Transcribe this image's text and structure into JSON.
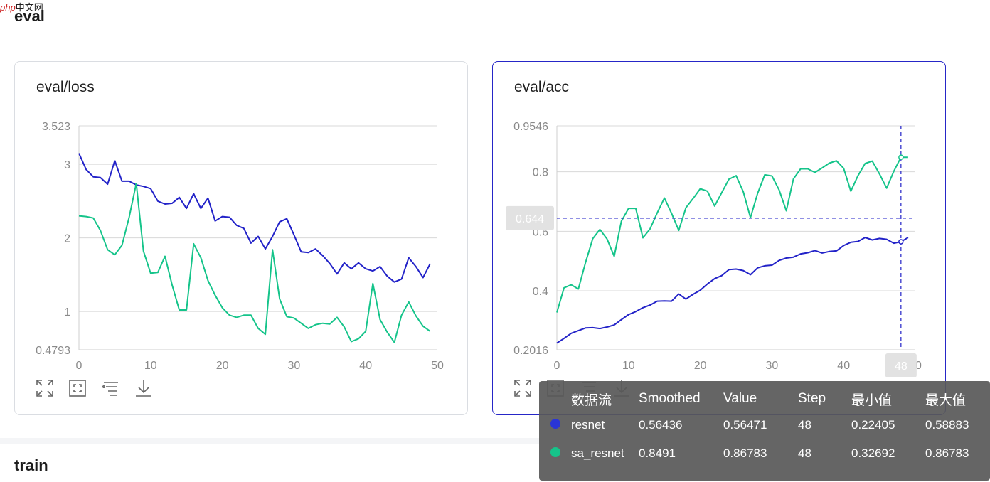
{
  "brand": {
    "logo_text": "php",
    "logo_cn": "中文网"
  },
  "sections": {
    "eval_title": "eval",
    "train_title": "train"
  },
  "charts": [
    {
      "title": "eval/loss",
      "y_ticks": [
        "3.523",
        "3",
        "2",
        "1",
        "0.4793"
      ],
      "x_ticks": [
        "0",
        "10",
        "20",
        "30",
        "40",
        "50"
      ]
    },
    {
      "title": "eval/acc",
      "y_ticks": [
        "0.9546",
        "0.8",
        "0.6",
        "0.4",
        "0.2016"
      ],
      "x_ticks": [
        "0",
        "10",
        "20",
        "30",
        "40",
        "50"
      ],
      "hover": {
        "y_label": "0.644",
        "x_label": "48"
      }
    }
  ],
  "toolbar_icons": [
    "expand-icon",
    "fit-icon",
    "filter-icon",
    "download-icon"
  ],
  "tooltip": {
    "headers": [
      "数据流",
      "Smoothed",
      "Value",
      "Step",
      "最小值",
      "最大值"
    ],
    "rows": [
      {
        "name": "resnet",
        "color": "#2a35d6",
        "smoothed": "0.56436",
        "value": "0.56471",
        "step": "48",
        "min": "0.22405",
        "max": "0.58883"
      },
      {
        "name": "sa_resnet",
        "color": "#15c48a",
        "smoothed": "0.8491",
        "value": "0.86783",
        "step": "48",
        "min": "0.32692",
        "max": "0.86783"
      }
    ]
  },
  "chart_data": [
    {
      "type": "line",
      "title": "eval/loss",
      "xlim": [
        0,
        50
      ],
      "ylim": [
        0.4793,
        3.523
      ],
      "grid": true,
      "series": [
        {
          "name": "resnet",
          "color": "#2222c8",
          "x": [
            0,
            1,
            2,
            3,
            4,
            5,
            6,
            7,
            8,
            9,
            10,
            11,
            12,
            13,
            14,
            15,
            16,
            17,
            18,
            19,
            20,
            21,
            22,
            23,
            24,
            25,
            26,
            27,
            28,
            29,
            30,
            31,
            32,
            33,
            34,
            35,
            36,
            37,
            38,
            39,
            40,
            41,
            42,
            43,
            44,
            45,
            46,
            47,
            48,
            49
          ],
          "y": [
            3.15,
            2.93,
            2.83,
            2.82,
            2.73,
            3.05,
            2.77,
            2.77,
            2.72,
            2.7,
            2.67,
            2.5,
            2.46,
            2.47,
            2.55,
            2.4,
            2.6,
            2.4,
            2.54,
            2.23,
            2.29,
            2.28,
            2.17,
            2.13,
            1.93,
            2.02,
            1.85,
            2.02,
            2.22,
            2.26,
            2.04,
            1.81,
            1.8,
            1.85,
            1.76,
            1.65,
            1.51,
            1.66,
            1.58,
            1.66,
            1.58,
            1.55,
            1.61,
            1.48,
            1.4,
            1.44,
            1.73,
            1.61,
            1.46,
            1.65
          ]
        },
        {
          "name": "sa_resnet",
          "color": "#15c48a",
          "x": [
            0,
            1,
            2,
            3,
            4,
            5,
            6,
            7,
            8,
            9,
            10,
            11,
            12,
            13,
            14,
            15,
            16,
            17,
            18,
            19,
            20,
            21,
            22,
            23,
            24,
            25,
            26,
            27,
            28,
            29,
            30,
            31,
            32,
            33,
            34,
            35,
            36,
            37,
            38,
            39,
            40,
            41,
            42,
            43,
            44,
            45,
            46,
            47,
            48,
            49
          ],
          "y": [
            2.3,
            2.29,
            2.27,
            2.1,
            1.84,
            1.77,
            1.9,
            2.28,
            2.74,
            1.82,
            1.52,
            1.53,
            1.75,
            1.36,
            1.02,
            1.02,
            1.92,
            1.73,
            1.42,
            1.22,
            1.05,
            0.95,
            0.92,
            0.95,
            0.95,
            0.77,
            0.69,
            1.84,
            1.17,
            0.93,
            0.91,
            0.84,
            0.77,
            0.82,
            0.84,
            0.83,
            0.92,
            0.79,
            0.59,
            0.63,
            0.73,
            1.38,
            0.89,
            0.72,
            0.58,
            0.95,
            1.13,
            0.94,
            0.8,
            0.73
          ]
        }
      ]
    },
    {
      "type": "line",
      "title": "eval/acc",
      "xlim": [
        0,
        50
      ],
      "ylim": [
        0.2016,
        0.9546
      ],
      "grid": true,
      "crosshair": {
        "x": 48,
        "y": 0.644
      },
      "series": [
        {
          "name": "resnet",
          "color": "#2222c8",
          "x": [
            0,
            1,
            2,
            3,
            4,
            5,
            6,
            7,
            8,
            9,
            10,
            11,
            12,
            13,
            14,
            15,
            16,
            17,
            18,
            19,
            20,
            21,
            22,
            23,
            24,
            25,
            26,
            27,
            28,
            29,
            30,
            31,
            32,
            33,
            34,
            35,
            36,
            37,
            38,
            39,
            40,
            41,
            42,
            43,
            44,
            45,
            46,
            47,
            48,
            49
          ],
          "y": [
            0.224,
            0.24,
            0.257,
            0.266,
            0.275,
            0.276,
            0.273,
            0.278,
            0.285,
            0.303,
            0.32,
            0.33,
            0.343,
            0.352,
            0.365,
            0.366,
            0.365,
            0.389,
            0.372,
            0.388,
            0.402,
            0.423,
            0.441,
            0.451,
            0.471,
            0.473,
            0.468,
            0.454,
            0.477,
            0.484,
            0.486,
            0.502,
            0.51,
            0.513,
            0.524,
            0.528,
            0.535,
            0.527,
            0.532,
            0.534,
            0.552,
            0.563,
            0.566,
            0.579,
            0.571,
            0.576,
            0.573,
            0.56,
            0.565,
            0.579
          ]
        },
        {
          "name": "sa_resnet",
          "color": "#15c48a",
          "x": [
            0,
            1,
            2,
            3,
            4,
            5,
            6,
            7,
            8,
            9,
            10,
            11,
            12,
            13,
            14,
            15,
            16,
            17,
            18,
            19,
            20,
            21,
            22,
            23,
            24,
            25,
            26,
            27,
            28,
            29,
            30,
            31,
            32,
            33,
            34,
            35,
            36,
            37,
            38,
            39,
            40,
            41,
            42,
            43,
            44,
            45,
            46,
            47,
            48,
            49
          ],
          "y": [
            0.327,
            0.41,
            0.42,
            0.406,
            0.495,
            0.575,
            0.606,
            0.574,
            0.516,
            0.634,
            0.677,
            0.677,
            0.578,
            0.608,
            0.662,
            0.712,
            0.66,
            0.603,
            0.679,
            0.71,
            0.743,
            0.735,
            0.685,
            0.73,
            0.775,
            0.787,
            0.733,
            0.646,
            0.727,
            0.79,
            0.786,
            0.739,
            0.669,
            0.776,
            0.81,
            0.81,
            0.798,
            0.813,
            0.829,
            0.837,
            0.812,
            0.735,
            0.787,
            0.828,
            0.836,
            0.793,
            0.745,
            0.802,
            0.849,
            0.849
          ]
        }
      ]
    }
  ]
}
